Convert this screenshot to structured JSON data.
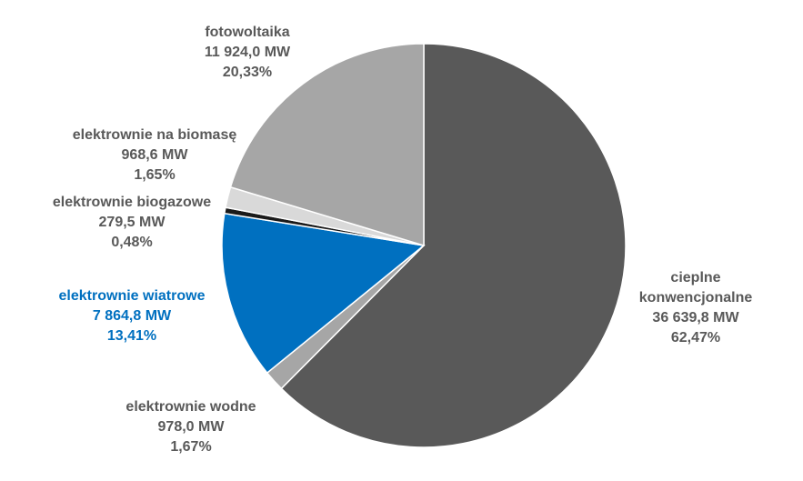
{
  "chart_data": {
    "type": "pie",
    "categories": [
      "cieplne konwencjonalne",
      "elektrownie wodne",
      "elektrownie wiatrowe",
      "elektrownie biogazowe",
      "elektrownie na biomasę",
      "fotowoltaika"
    ],
    "values": [
      62.47,
      1.67,
      13.41,
      0.48,
      1.65,
      20.33
    ],
    "value_labels": [
      "62,47%",
      "1,67%",
      "13,41%",
      "0,48%",
      "1,65%",
      "20,33%"
    ],
    "capacity_mw": [
      36639.8,
      978.0,
      7864.8,
      279.5,
      968.6,
      11924.0
    ],
    "capacity_labels": [
      "36 639,8 MW",
      "978,0 MW",
      "7 864,8 MW",
      "279,5 MW",
      "968,6 MW",
      "11 924,0 MW"
    ],
    "colors": [
      "#595959",
      "#a6a6a6",
      "#0070c0",
      "#1a1a1a",
      "#d9d9d9",
      "#a6a6a6"
    ],
    "label_colors": [
      "#595959",
      "#595959",
      "#0070c0",
      "#595959",
      "#595959",
      "#595959"
    ]
  }
}
